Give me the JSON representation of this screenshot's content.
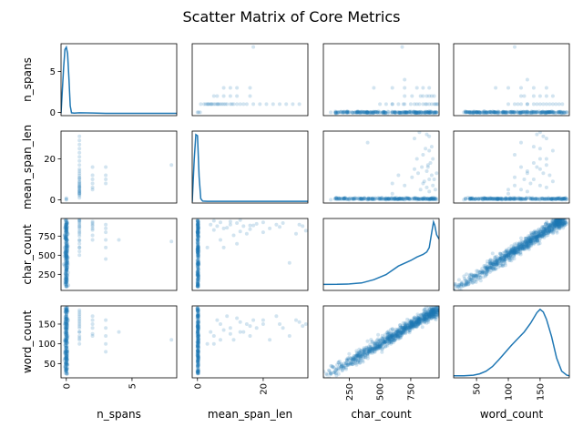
{
  "title": "Scatter Matrix of Core Metrics",
  "colors": {
    "primary": "#1f77b4"
  },
  "chart_data": {
    "type": "scatter",
    "title": "Scatter Matrix of Core Metrics",
    "variables": [
      "n_spans",
      "mean_span_len",
      "char_count",
      "word_count"
    ],
    "ranges": {
      "n_spans": [
        -0.4,
        8.4
      ],
      "mean_span_len": [
        -1.6,
        33.6
      ],
      "char_count": [
        40,
        980
      ],
      "word_count": [
        14,
        196
      ]
    },
    "ticks": {
      "n_spans": {
        "values": [
          0,
          5
        ],
        "labels": [
          "0",
          "5"
        ]
      },
      "mean_span_len": {
        "values": [
          0,
          20
        ],
        "labels": [
          "0",
          "20"
        ]
      },
      "char_count": {
        "values": [
          250,
          500,
          750
        ],
        "labels": [
          "250",
          "500",
          "750"
        ]
      },
      "word_count": {
        "values": [
          50,
          100,
          150
        ],
        "labels": [
          "50",
          "100",
          "150"
        ]
      }
    },
    "diagonal": "kde",
    "point_alpha": 0.2,
    "grid": false,
    "kde": {
      "n_spans": [
        [
          -0.4,
          0.3
        ],
        [
          -0.2,
          6
        ],
        [
          -0.1,
          8.1
        ],
        [
          0,
          8.4
        ],
        [
          0.1,
          7.6
        ],
        [
          0.2,
          4.5
        ],
        [
          0.3,
          1.2
        ],
        [
          0.4,
          0.35
        ],
        [
          0.6,
          0.3
        ],
        [
          1,
          0.35
        ],
        [
          2,
          0.32
        ],
        [
          3,
          0.28
        ],
        [
          5,
          0.28
        ],
        [
          8.4,
          0.28
        ]
      ],
      "mean_span_len": [
        [
          -1.6,
          0.5
        ],
        [
          -1,
          20
        ],
        [
          -0.5,
          31.5
        ],
        [
          0,
          31
        ],
        [
          0.5,
          12
        ],
        [
          1,
          2
        ],
        [
          1.6,
          0.9
        ],
        [
          3,
          0.8
        ],
        [
          8,
          0.8
        ],
        [
          15,
          0.8
        ],
        [
          25,
          0.8
        ],
        [
          33.6,
          0.8
        ]
      ],
      "char_count": [
        [
          40,
          140
        ],
        [
          150,
          142
        ],
        [
          250,
          150
        ],
        [
          350,
          175
        ],
        [
          450,
          250
        ],
        [
          550,
          370
        ],
        [
          650,
          570
        ],
        [
          750,
          700
        ],
        [
          800,
          780
        ],
        [
          850,
          840
        ],
        [
          880,
          900
        ],
        [
          900,
          1000
        ],
        [
          920,
          1350
        ],
        [
          935,
          1600
        ],
        [
          945,
          1520
        ],
        [
          960,
          1300
        ],
        [
          980,
          1200
        ]
      ],
      "word_count": [
        [
          14,
          3
        ],
        [
          30,
          3
        ],
        [
          45,
          4
        ],
        [
          55,
          6
        ],
        [
          65,
          10
        ],
        [
          75,
          17
        ],
        [
          85,
          27
        ],
        [
          95,
          38
        ],
        [
          105,
          49
        ],
        [
          115,
          59
        ],
        [
          125,
          69
        ],
        [
          135,
          82
        ],
        [
          145,
          98
        ],
        [
          150,
          103
        ],
        [
          155,
          99
        ],
        [
          160,
          88
        ],
        [
          168,
          62
        ],
        [
          176,
          30
        ],
        [
          184,
          10
        ],
        [
          192,
          4
        ],
        [
          196,
          3
        ]
      ]
    },
    "pairs": {
      "n_spans_vs_mean_span_len": {
        "x": [
          0,
          0,
          0,
          1,
          1,
          1,
          1,
          1,
          1,
          1,
          1,
          1,
          1,
          1,
          1,
          1,
          1,
          1,
          1,
          1,
          1,
          1,
          1,
          1,
          1,
          1,
          1,
          1,
          1,
          1,
          1,
          1,
          1,
          1,
          1,
          1,
          1,
          2,
          2,
          2,
          2,
          2,
          2,
          3,
          3,
          3,
          3,
          8
        ],
        "y": [
          0,
          0.3,
          0.8,
          1,
          2,
          3,
          3.5,
          4,
          4.5,
          5,
          5.5,
          6,
          6.5,
          7,
          7.5,
          8,
          9,
          10,
          11,
          12,
          13,
          15,
          17,
          19,
          21,
          23,
          25,
          27,
          29,
          31,
          2.5,
          3.2,
          4.2,
          6.2,
          8.5,
          10.5,
          14,
          5,
          6,
          8,
          10,
          12,
          16,
          8,
          10,
          12,
          16,
          17
        ]
      },
      "n_spans_vs_char_count": {
        "x": [
          0,
          0,
          0,
          0,
          0,
          0,
          0,
          0,
          0,
          0,
          1,
          1,
          1,
          1,
          1,
          1,
          1,
          1,
          1,
          1,
          1,
          1,
          1,
          1,
          1,
          1,
          1,
          1,
          1,
          1,
          2,
          2,
          2,
          2,
          2,
          2,
          2,
          2,
          3,
          3,
          3,
          3,
          3,
          3,
          4,
          8
        ],
        "y": [
          100,
          200,
          300,
          400,
          500,
          600,
          700,
          800,
          900,
          960,
          500,
          550,
          600,
          650,
          700,
          750,
          780,
          800,
          820,
          850,
          870,
          880,
          900,
          920,
          940,
          950,
          960,
          970,
          600,
          690,
          850,
          900,
          920,
          940,
          880,
          830,
          760,
          700,
          900,
          850,
          800,
          700,
          600,
          450,
          700,
          680
        ]
      },
      "n_spans_vs_word_count": {
        "x": [
          0,
          0,
          0,
          0,
          0,
          0,
          0,
          0,
          0,
          1,
          1,
          1,
          1,
          1,
          1,
          1,
          1,
          1,
          1,
          1,
          1,
          1,
          1,
          1,
          1,
          2,
          2,
          2,
          2,
          2,
          2,
          3,
          3,
          3,
          3,
          3,
          4,
          8
        ],
        "y": [
          30,
          50,
          70,
          90,
          110,
          130,
          150,
          170,
          190,
          100,
          110,
          115,
          120,
          130,
          140,
          145,
          150,
          155,
          160,
          165,
          170,
          175,
          180,
          185,
          130,
          140,
          150,
          160,
          170,
          120,
          125,
          100,
          120,
          140,
          160,
          80,
          130,
          110
        ]
      },
      "mean_span_len_vs_char_count": {
        "x": [
          0,
          0,
          0,
          0,
          0,
          0,
          0,
          0,
          3,
          4,
          5,
          6,
          7,
          8,
          9,
          10,
          11,
          12,
          13,
          14,
          15,
          16,
          17,
          18,
          20,
          22,
          24,
          25,
          26,
          28,
          30,
          31,
          32,
          33,
          5,
          7,
          10,
          13,
          16,
          20,
          8,
          12
        ],
        "y": [
          100,
          250,
          400,
          550,
          700,
          800,
          900,
          960,
          600,
          900,
          830,
          880,
          700,
          850,
          860,
          900,
          760,
          920,
          810,
          880,
          780,
          840,
          890,
          910,
          800,
          850,
          900,
          870,
          920,
          400,
          780,
          900,
          880,
          820,
          950,
          930,
          940,
          960,
          890,
          930,
          600,
          650
        ]
      },
      "mean_span_len_vs_word_count": {
        "x": [
          0,
          0,
          0,
          0,
          0,
          0,
          0,
          0,
          3,
          4,
          5,
          6,
          7,
          8,
          9,
          10,
          11,
          12,
          13,
          14,
          15,
          16,
          17,
          18,
          20,
          22,
          24,
          25,
          26,
          28,
          30,
          31,
          32,
          33,
          5,
          7,
          10,
          13,
          16,
          20
        ],
        "y": [
          30,
          60,
          90,
          120,
          150,
          170,
          185,
          190,
          100,
          130,
          120,
          160,
          150,
          135,
          170,
          140,
          110,
          165,
          155,
          130,
          150,
          120,
          160,
          140,
          150,
          110,
          170,
          150,
          140,
          120,
          160,
          155,
          145,
          150,
          100,
          110,
          125,
          130,
          145,
          160
        ]
      },
      "char_count_vs_word_count": {
        "relation": "word_count ≈ 0.185 × char_count + 7",
        "x": [
          40,
          100,
          200,
          300,
          400,
          500,
          600,
          700,
          800,
          900,
          970
        ],
        "y": [
          15,
          25,
          45,
          63,
          80,
          100,
          118,
          137,
          155,
          175,
          185
        ]
      }
    }
  }
}
